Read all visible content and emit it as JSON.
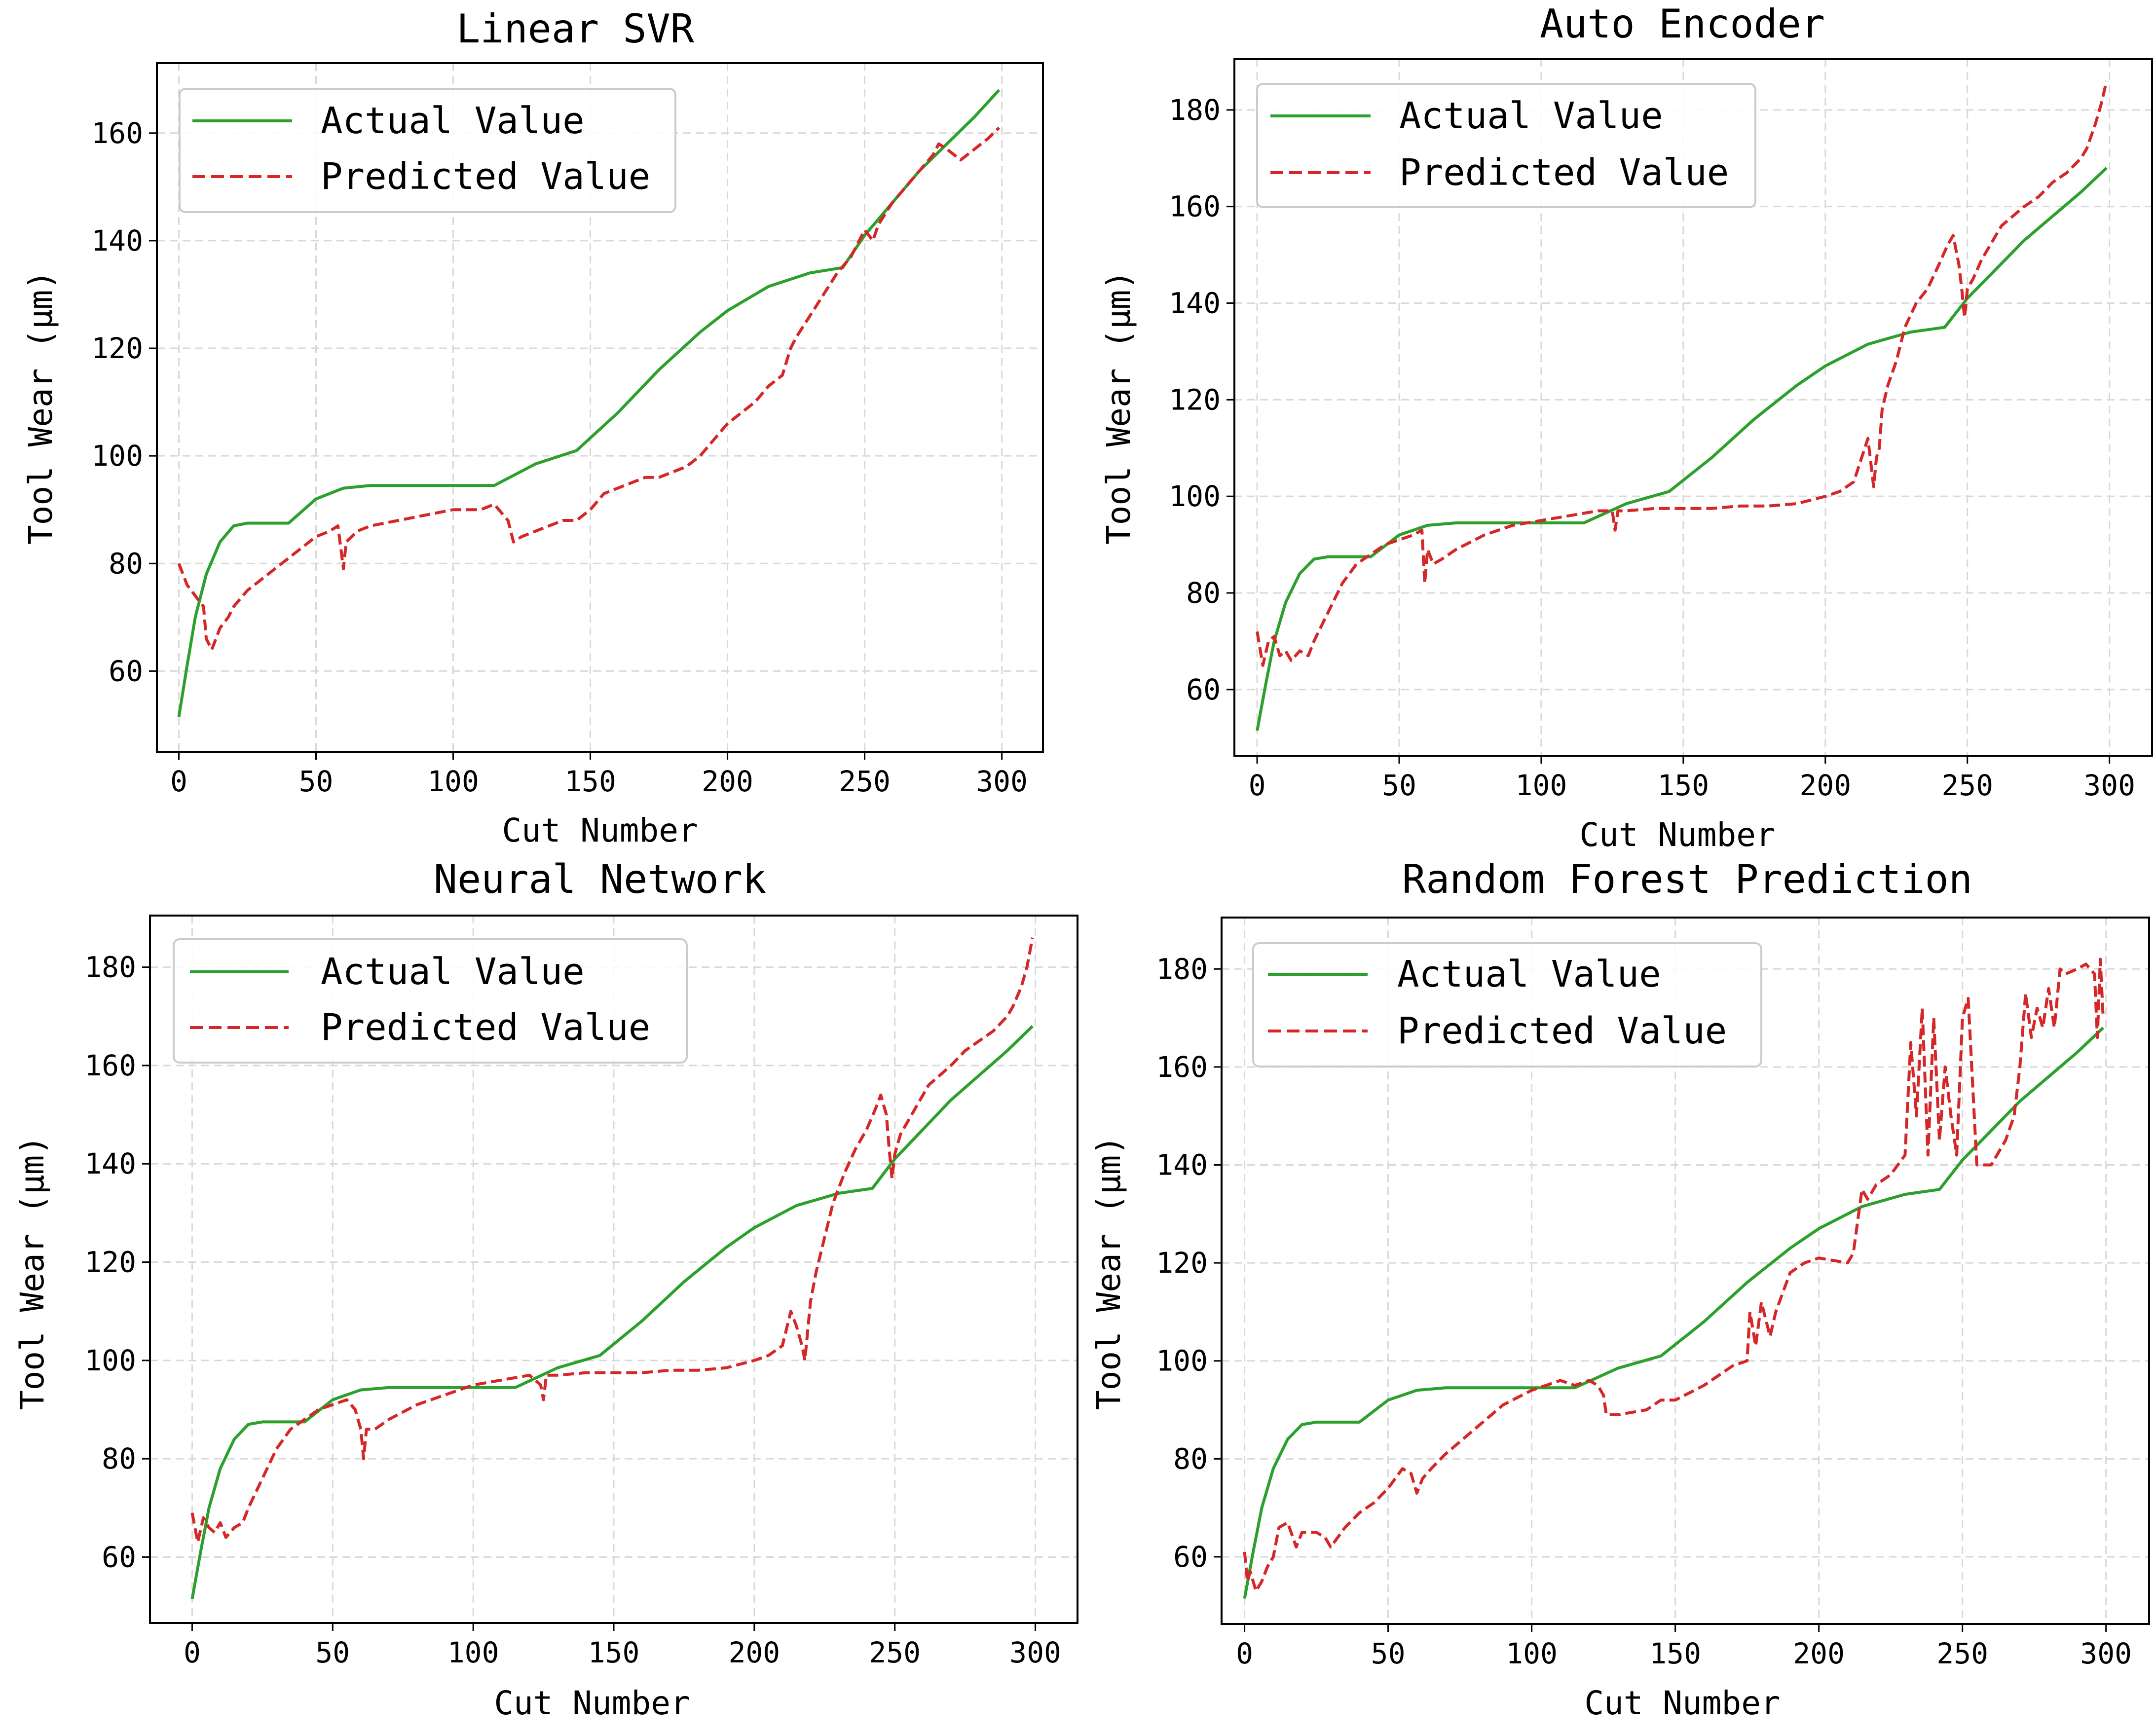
{
  "colors": {
    "actual": "#2ca02c",
    "predicted": "#d62728",
    "grid": "#d9d9d9",
    "legend_border": "#cccccc"
  },
  "chart_data": [
    {
      "type": "line",
      "title": "Linear SVR",
      "xlabel": "Cut Number",
      "ylabel": "Tool Wear (μm)",
      "xlim": [
        -8,
        315
      ],
      "ylim": [
        45,
        173
      ],
      "xticks": [
        0,
        50,
        100,
        150,
        200,
        250,
        300
      ],
      "yticks": [
        60,
        80,
        100,
        120,
        140,
        160
      ],
      "grid": true,
      "legend_position": "upper-left",
      "series": [
        {
          "name": "Actual Value",
          "style": "solid",
          "x": [
            0,
            3,
            6,
            10,
            15,
            20,
            25,
            30,
            40,
            50,
            60,
            70,
            80,
            100,
            115,
            130,
            145,
            160,
            175,
            190,
            200,
            215,
            230,
            242,
            250,
            260,
            270,
            280,
            290,
            299
          ],
          "y": [
            51.5,
            61,
            70,
            78,
            84,
            87,
            87.5,
            87.5,
            87.5,
            92,
            94,
            94.5,
            94.5,
            94.5,
            94.5,
            98.5,
            101,
            108,
            116,
            123,
            127,
            131.5,
            134,
            135,
            141,
            147,
            153,
            158,
            163,
            168
          ]
        },
        {
          "name": "Predicted Value",
          "style": "dashed",
          "x": [
            0,
            3,
            6,
            9,
            10,
            12,
            15,
            18,
            20,
            25,
            30,
            35,
            40,
            45,
            50,
            55,
            58,
            60,
            61,
            65,
            70,
            80,
            90,
            100,
            110,
            115,
            120,
            122,
            125,
            130,
            135,
            140,
            145,
            150,
            155,
            160,
            165,
            170,
            175,
            180,
            185,
            190,
            200,
            205,
            210,
            215,
            220,
            223,
            225,
            230,
            235,
            240,
            245,
            250,
            253,
            255,
            260,
            265,
            270,
            275,
            277,
            280,
            285,
            290,
            295,
            299
          ],
          "y": [
            80,
            76,
            74,
            72,
            66,
            64,
            68,
            70,
            72,
            75,
            77,
            79,
            81,
            83,
            85,
            86,
            87,
            79,
            84,
            86,
            87,
            88,
            89,
            90,
            90,
            91,
            88,
            84,
            85,
            86,
            87,
            88,
            88,
            90,
            93,
            94,
            95,
            96,
            96,
            97,
            98,
            100,
            106,
            108,
            110,
            113,
            115,
            120,
            122,
            126,
            130,
            134,
            137,
            142,
            140,
            143,
            147,
            150,
            153,
            156,
            158,
            157,
            155,
            157,
            159,
            161
          ]
        }
      ]
    },
    {
      "type": "line",
      "title": "Auto Encoder",
      "xlabel": "Cut Number",
      "ylabel": "Tool Wear (μm)",
      "xlim": [
        -8,
        315
      ],
      "ylim": [
        46.3,
        190.5
      ],
      "xticks": [
        0,
        50,
        100,
        150,
        200,
        250,
        300
      ],
      "yticks": [
        60,
        80,
        100,
        120,
        140,
        160,
        180
      ],
      "grid": true,
      "legend_position": "upper-left",
      "series": [
        {
          "name": "Actual Value",
          "style": "solid",
          "x": [
            0,
            3,
            6,
            10,
            15,
            20,
            25,
            30,
            40,
            50,
            60,
            70,
            80,
            100,
            115,
            130,
            145,
            160,
            175,
            190,
            200,
            215,
            230,
            242,
            250,
            260,
            270,
            280,
            290,
            299
          ],
          "y": [
            51.5,
            61,
            70,
            78,
            84,
            87,
            87.5,
            87.5,
            87.5,
            92,
            94,
            94.5,
            94.5,
            94.5,
            94.5,
            98.5,
            101,
            108,
            116,
            123,
            127,
            131.5,
            134,
            135,
            141,
            147,
            153,
            158,
            163,
            168
          ]
        },
        {
          "name": "Predicted Value",
          "style": "dashed",
          "x": [
            0,
            2,
            4,
            6,
            8,
            10,
            12,
            15,
            18,
            20,
            25,
            30,
            35,
            40,
            45,
            50,
            55,
            58,
            59,
            60,
            62,
            65,
            70,
            80,
            90,
            100,
            110,
            120,
            125,
            126,
            127,
            130,
            140,
            150,
            160,
            170,
            180,
            190,
            200,
            205,
            210,
            215,
            217,
            218,
            219,
            220,
            222,
            225,
            228,
            232,
            236,
            240,
            243,
            245,
            247,
            248,
            249,
            250,
            252,
            255,
            258,
            262,
            266,
            270,
            275,
            280,
            285,
            290,
            292,
            295,
            297,
            299
          ],
          "y": [
            72,
            65,
            70,
            71,
            67,
            68,
            66,
            68,
            67,
            70,
            76,
            82,
            86,
            88,
            90,
            91,
            92,
            93,
            82,
            89,
            86,
            87,
            89,
            92,
            94,
            95,
            96,
            97,
            97,
            93,
            97,
            97,
            97.5,
            97.5,
            97.5,
            98,
            98,
            98.5,
            100,
            101,
            103,
            112,
            102,
            108,
            110,
            118,
            123,
            128,
            135,
            140,
            143,
            148,
            152,
            154,
            148,
            143,
            137,
            143,
            145,
            149,
            152,
            156,
            158,
            160,
            162,
            165,
            167,
            170,
            172,
            177,
            181,
            186
          ]
        }
      ]
    },
    {
      "type": "line",
      "title": "Neural Network",
      "xlabel": "Cut Number",
      "ylabel": "Tool Wear (μm)",
      "xlim": [
        -15,
        315
      ],
      "ylim": [
        46.6,
        190.5
      ],
      "xticks": [
        0,
        50,
        100,
        150,
        200,
        250,
        300
      ],
      "yticks": [
        60,
        80,
        100,
        120,
        140,
        160,
        180
      ],
      "grid": true,
      "legend_position": "upper-left",
      "series": [
        {
          "name": "Actual Value",
          "style": "solid",
          "x": [
            0,
            3,
            6,
            10,
            15,
            20,
            25,
            30,
            40,
            50,
            60,
            70,
            80,
            100,
            115,
            130,
            145,
            160,
            175,
            190,
            200,
            215,
            230,
            242,
            250,
            260,
            270,
            280,
            290,
            299
          ],
          "y": [
            51.5,
            61,
            70,
            78,
            84,
            87,
            87.5,
            87.5,
            87.5,
            92,
            94,
            94.5,
            94.5,
            94.5,
            94.5,
            98.5,
            101,
            108,
            116,
            123,
            127,
            131.5,
            134,
            135,
            141,
            147,
            153,
            158,
            163,
            168
          ]
        },
        {
          "name": "Predicted Value",
          "style": "dashed",
          "x": [
            0,
            2,
            4,
            6,
            8,
            10,
            12,
            15,
            18,
            20,
            25,
            30,
            35,
            40,
            45,
            50,
            55,
            58,
            60,
            61,
            62,
            65,
            70,
            80,
            90,
            100,
            110,
            120,
            124,
            125,
            126,
            130,
            140,
            150,
            160,
            170,
            180,
            190,
            200,
            205,
            210,
            213,
            215,
            217,
            218,
            219,
            220,
            222,
            225,
            228,
            232,
            236,
            240,
            243,
            245,
            247,
            248,
            249,
            250,
            252,
            255,
            258,
            262,
            266,
            270,
            275,
            280,
            285,
            290,
            292,
            295,
            297,
            299
          ],
          "y": [
            69,
            63,
            68,
            66,
            65,
            67,
            64,
            66,
            67,
            70,
            76,
            82,
            86,
            88,
            90,
            91,
            92,
            90,
            86,
            80,
            86,
            86,
            88,
            91,
            93,
            95,
            96,
            97,
            95,
            92,
            97,
            97,
            97.5,
            97.5,
            97.5,
            98,
            98,
            98.5,
            100,
            101,
            103,
            110,
            107,
            103,
            100,
            106,
            112,
            118,
            125,
            132,
            138,
            143,
            147,
            151,
            154,
            150,
            143,
            137,
            142,
            146,
            149,
            152,
            156,
            158,
            160,
            163,
            165,
            167,
            170,
            172,
            176,
            180,
            186
          ]
        }
      ]
    },
    {
      "type": "line",
      "title": "Random Forest Prediction",
      "xlabel": "Cut Number",
      "ylabel": "Tool Wear (μm)",
      "xlim": [
        -8,
        315
      ],
      "ylim": [
        46.3,
        190.5
      ],
      "xticks": [
        0,
        50,
        100,
        150,
        200,
        250,
        300
      ],
      "yticks": [
        60,
        80,
        100,
        120,
        140,
        160,
        180
      ],
      "grid": true,
      "legend_position": "upper-left",
      "series": [
        {
          "name": "Actual Value",
          "style": "solid",
          "x": [
            0,
            3,
            6,
            10,
            15,
            20,
            25,
            30,
            40,
            50,
            60,
            70,
            80,
            100,
            115,
            130,
            145,
            160,
            175,
            190,
            200,
            215,
            230,
            242,
            250,
            260,
            270,
            280,
            290,
            299
          ],
          "y": [
            51.5,
            61,
            70,
            78,
            84,
            87,
            87.5,
            87.5,
            87.5,
            92,
            94,
            94.5,
            94.5,
            94.5,
            94.5,
            98.5,
            101,
            108,
            116,
            123,
            127,
            131.5,
            134,
            135,
            141,
            147,
            153,
            158,
            163,
            168
          ]
        },
        {
          "name": "Predicted Value",
          "style": "dashed",
          "x": [
            0,
            1,
            2,
            4,
            6,
            8,
            10,
            12,
            15,
            18,
            20,
            25,
            28,
            30,
            35,
            40,
            45,
            50,
            55,
            58,
            60,
            62,
            65,
            70,
            80,
            90,
            100,
            105,
            110,
            115,
            120,
            123,
            125,
            126,
            130,
            140,
            145,
            150,
            160,
            170,
            175,
            176,
            178,
            180,
            183,
            185,
            190,
            195,
            200,
            210,
            212,
            215,
            217,
            220,
            225,
            230,
            232,
            234,
            236,
            238,
            240,
            242,
            244,
            246,
            248,
            250,
            252,
            255,
            260,
            265,
            268,
            270,
            272,
            274,
            276,
            278,
            280,
            282,
            284,
            286,
            290,
            293,
            296,
            297,
            298,
            299
          ],
          "y": [
            61,
            55,
            57,
            53,
            55,
            58,
            60,
            66,
            67,
            62,
            65,
            65,
            64,
            62,
            66,
            69,
            71,
            74,
            78,
            77,
            73,
            76,
            78,
            81,
            86,
            91,
            94,
            95,
            96,
            95,
            96,
            95,
            93,
            89,
            89,
            90,
            92,
            92,
            95,
            99,
            100,
            110,
            103,
            112,
            105,
            110,
            118,
            120,
            121,
            120,
            122,
            135,
            133,
            136,
            138,
            142,
            165,
            150,
            172,
            142,
            170,
            145,
            160,
            150,
            142,
            170,
            174,
            140,
            140,
            145,
            150,
            160,
            175,
            166,
            172,
            168,
            176,
            168,
            180,
            179,
            180,
            181,
            179,
            166,
            182,
            170
          ]
        }
      ]
    }
  ]
}
